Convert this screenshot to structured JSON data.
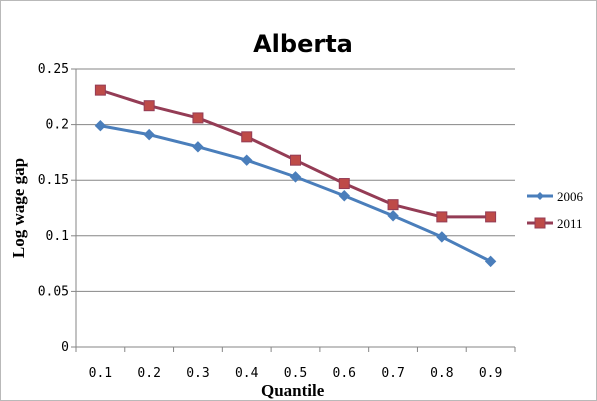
{
  "chart_data": {
    "type": "line",
    "title": "Alberta",
    "xlabel": "Quantile",
    "ylabel": "Log wage gap",
    "categories": [
      "0.1",
      "0.2",
      "0.3",
      "0.4",
      "0.5",
      "0.6",
      "0.7",
      "0.8",
      "0.9"
    ],
    "y_ticks": [
      "0",
      "0.05",
      "0.1",
      "0.15",
      "0.2",
      "0.25"
    ],
    "ylim": [
      0,
      0.25
    ],
    "grid": true,
    "legend": "right",
    "series": [
      {
        "name": "2006",
        "color": "#4A7EBB",
        "marker": "diamond",
        "values": [
          0.199,
          0.191,
          0.18,
          0.168,
          0.153,
          0.136,
          0.118,
          0.099,
          0.077
        ]
      },
      {
        "name": "2011",
        "color": "#943C55",
        "marker": "square",
        "marker_color": "#BE4B48",
        "values": [
          0.231,
          0.217,
          0.206,
          0.189,
          0.168,
          0.147,
          0.128,
          0.117,
          0.117
        ]
      }
    ]
  }
}
